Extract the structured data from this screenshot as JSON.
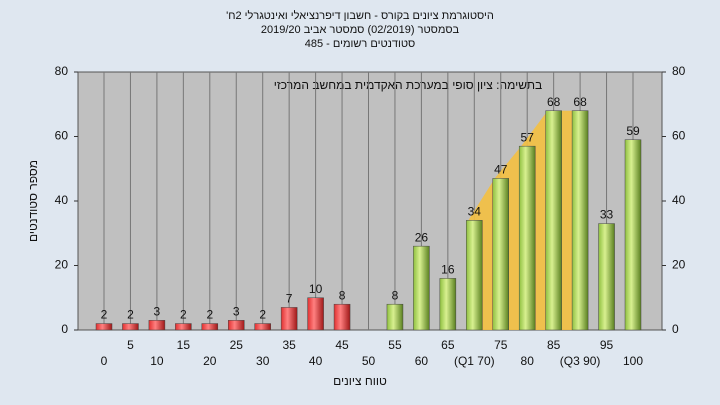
{
  "chart_data": {
    "type": "bar",
    "title": [
      "היסטוגרמת ציונים בקורס - חשבון דיפרנציאלי ואינטגרלי 2ח'",
      "בסמסטר (02/2019) סמסטר אביב 2019/20",
      "סטודנטים רשומים - 485"
    ],
    "annotation": "בתשימה: ציון סופי במערכת האקדמית במחשב המרכזי",
    "x_label": "טווח ציונים",
    "y_label": "מספר סטודנטים",
    "categories": [
      "0",
      "5",
      "10",
      "15",
      "20",
      "25",
      "30",
      "35",
      "40",
      "45",
      "50",
      "55",
      "60",
      "65",
      "(Q1 70)",
      "75",
      "80",
      "85",
      "(Q3 90)",
      "95",
      "100"
    ],
    "values": [
      2,
      2,
      3,
      2,
      2,
      3,
      2,
      7,
      10,
      8,
      null,
      8,
      26,
      16,
      34,
      47,
      57,
      68,
      68,
      33,
      59
    ],
    "colors": {
      "fail": "#e03030",
      "pass": "#8fc040",
      "band": "#f4c040"
    },
    "ylim": [
      0,
      80
    ],
    "yticks": [
      0,
      20,
      40,
      60,
      80
    ]
  }
}
